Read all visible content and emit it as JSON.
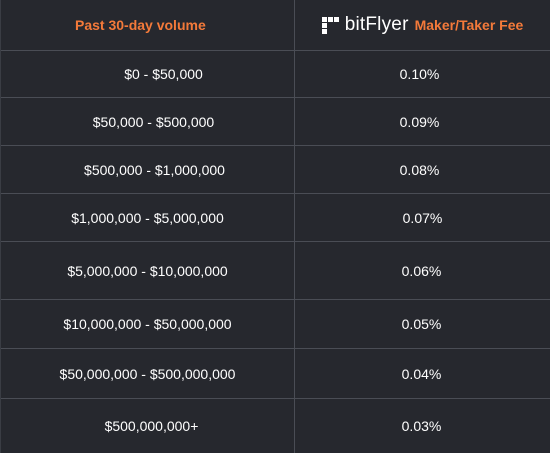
{
  "header": {
    "volume_label": "Past 30-day volume",
    "brand": "bitFlyer",
    "fee_label": "Maker/Taker Fee"
  },
  "colors": {
    "background": "#26282e",
    "accent": "#f47a3a",
    "text": "#ffffff",
    "divider": "#4a4d55"
  },
  "rows": [
    {
      "volume": "$0 - $50,000",
      "fee": "0.10%"
    },
    {
      "volume": "$50,000 - $500,000",
      "fee": "0.09%"
    },
    {
      "volume": "$500,000 - $1,000,000",
      "fee": "0.08%"
    },
    {
      "volume": "$1,000,000 - $5,000,000",
      "fee": "0.07%"
    },
    {
      "volume": "$5,000,000 - $10,000,000",
      "fee": "0.06%"
    },
    {
      "volume": "$10,000,000 - $50,000,000",
      "fee": "0.05%"
    },
    {
      "volume": "$50,000,000 - $500,000,000",
      "fee": "0.04%"
    },
    {
      "volume": "$500,000,000+",
      "fee": "0.03%"
    }
  ]
}
